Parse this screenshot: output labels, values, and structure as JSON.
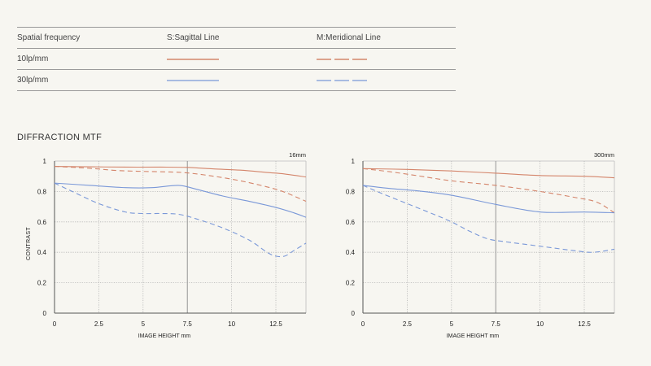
{
  "legend": {
    "header": {
      "col1": "Spatial frequency",
      "col2": "S:Sagittal Line",
      "col3": "M:Meridional Line"
    },
    "rows": [
      {
        "label": "10lp/mm",
        "color": "#d4856b"
      },
      {
        "label": "30lp/mm",
        "color": "#7a98d8"
      }
    ]
  },
  "section_title": "DIFFRACTION MTF",
  "chart_data": [
    {
      "type": "line",
      "title": "16mm",
      "xlabel": "IMAGE HEIGHT  mm",
      "ylabel": "CONTRAST",
      "xlim": [
        0,
        14.2
      ],
      "ylim": [
        0,
        1
      ],
      "xticks": [
        0,
        2.5,
        5,
        7.5,
        10,
        12.5
      ],
      "yticks": [
        0,
        0.2,
        0.4,
        0.6,
        0.8,
        1
      ],
      "grid": true,
      "series": [
        {
          "name": "10lp/mm S",
          "style": "solid",
          "color": "#d4856b",
          "x": [
            0,
            2,
            4,
            6,
            7.5,
            9,
            10.5,
            12,
            13,
            14.2
          ],
          "y": [
            0.965,
            0.962,
            0.96,
            0.96,
            0.958,
            0.948,
            0.94,
            0.925,
            0.915,
            0.895
          ]
        },
        {
          "name": "10lp/mm M",
          "style": "dashed",
          "color": "#d4856b",
          "x": [
            0,
            2,
            3.5,
            5,
            6.5,
            7.5,
            9,
            10.5,
            12,
            13,
            14.2
          ],
          "y": [
            0.965,
            0.952,
            0.938,
            0.932,
            0.928,
            0.922,
            0.9,
            0.87,
            0.83,
            0.795,
            0.735
          ]
        },
        {
          "name": "30lp/mm S",
          "style": "solid",
          "color": "#7a98d8",
          "x": [
            0,
            2,
            4,
            5.5,
            7,
            8,
            9.5,
            11,
            12.5,
            13.5,
            14.2
          ],
          "y": [
            0.855,
            0.84,
            0.825,
            0.825,
            0.84,
            0.815,
            0.77,
            0.735,
            0.695,
            0.66,
            0.63
          ]
        },
        {
          "name": "30lp/mm M",
          "style": "dashed",
          "color": "#7a98d8",
          "x": [
            0,
            1,
            2.5,
            4,
            5,
            6,
            7,
            8,
            9.5,
            11,
            12,
            12.5,
            13,
            13.5,
            14.2
          ],
          "y": [
            0.855,
            0.8,
            0.72,
            0.665,
            0.655,
            0.655,
            0.65,
            0.62,
            0.56,
            0.48,
            0.4,
            0.375,
            0.375,
            0.41,
            0.46
          ]
        }
      ]
    },
    {
      "type": "line",
      "title": "300mm",
      "xlabel": "IMAGE HEIGHT  mm",
      "ylabel": "",
      "xlim": [
        0,
        14.2
      ],
      "ylim": [
        0,
        1
      ],
      "xticks": [
        0,
        2.5,
        5,
        7.5,
        10,
        12.5
      ],
      "yticks": [
        0,
        0.2,
        0.4,
        0.6,
        0.8,
        1
      ],
      "grid": true,
      "series": [
        {
          "name": "10lp/mm S",
          "style": "solid",
          "color": "#d4856b",
          "x": [
            0,
            2.5,
            5,
            7.5,
            10,
            12.5,
            14.2
          ],
          "y": [
            0.95,
            0.945,
            0.935,
            0.92,
            0.905,
            0.9,
            0.89
          ]
        },
        {
          "name": "10lp/mm M",
          "style": "dashed",
          "color": "#d4856b",
          "x": [
            0,
            1.5,
            3,
            5,
            7.5,
            10,
            12,
            13.2,
            14.2
          ],
          "y": [
            0.95,
            0.93,
            0.905,
            0.87,
            0.84,
            0.8,
            0.76,
            0.73,
            0.66
          ]
        },
        {
          "name": "30lp/mm S",
          "style": "solid",
          "color": "#7a98d8",
          "x": [
            0,
            1.5,
            3,
            5,
            7.5,
            10,
            12.5,
            14.2
          ],
          "y": [
            0.84,
            0.82,
            0.805,
            0.775,
            0.715,
            0.665,
            0.665,
            0.66
          ]
        },
        {
          "name": "30lp/mm M",
          "style": "dashed",
          "color": "#7a98d8",
          "x": [
            0,
            1,
            2.5,
            4,
            5,
            6,
            7,
            8,
            10,
            12,
            13,
            14.2
          ],
          "y": [
            0.84,
            0.79,
            0.72,
            0.65,
            0.6,
            0.54,
            0.49,
            0.47,
            0.44,
            0.41,
            0.4,
            0.42
          ]
        }
      ]
    }
  ]
}
